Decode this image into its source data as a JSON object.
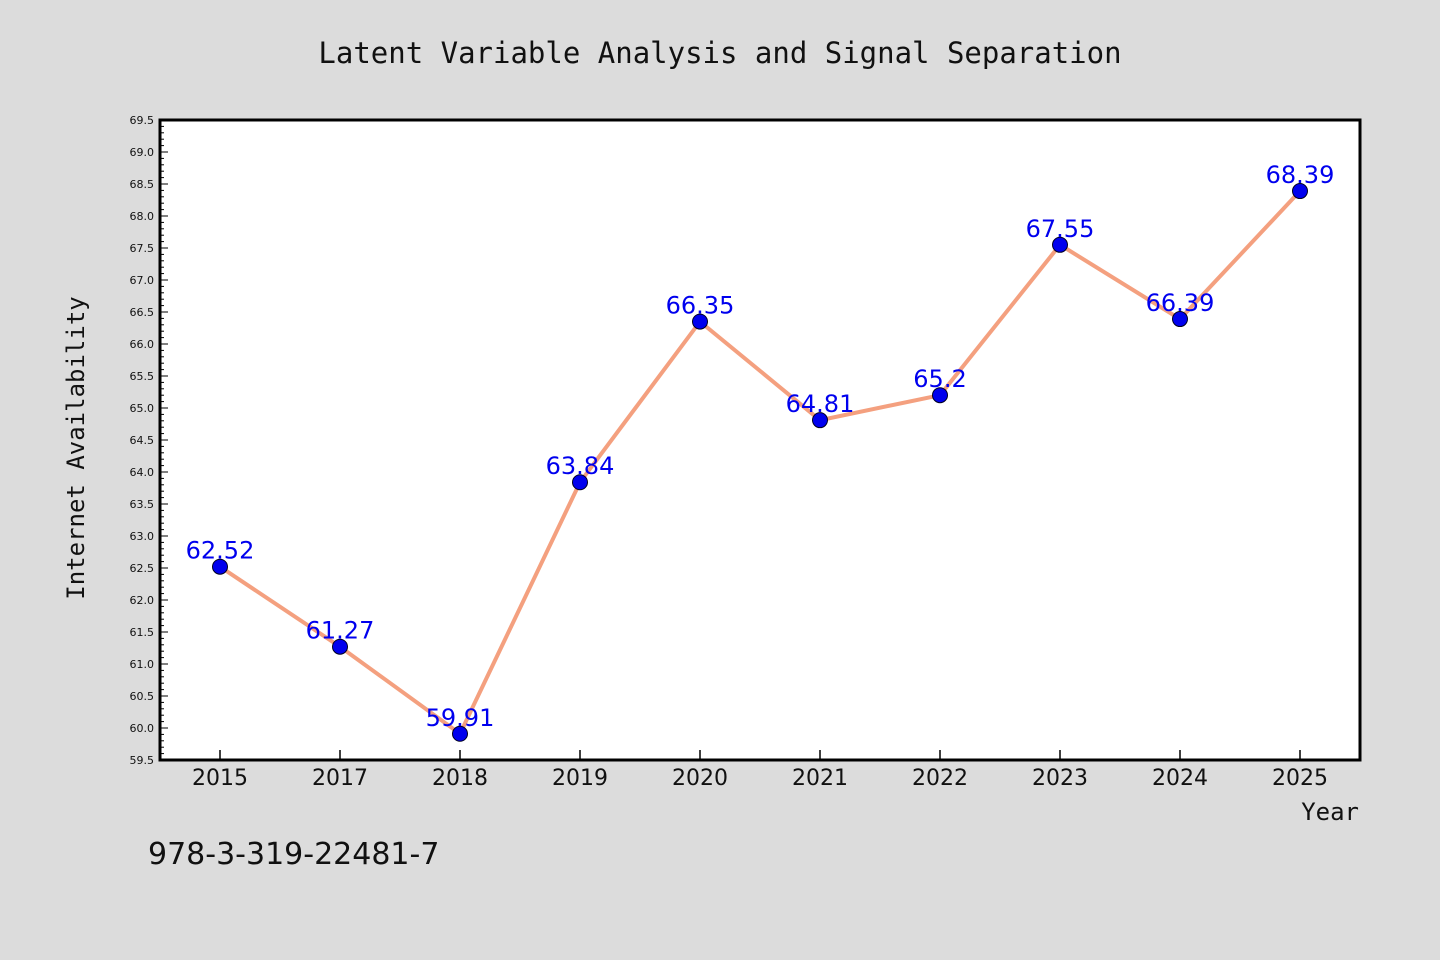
{
  "chart_data": {
    "type": "line",
    "title": "Latent Variable Analysis and Signal Separation",
    "xlabel": "Year",
    "ylabel": "Internet Availability",
    "categories": [
      "2015",
      "2017",
      "2018",
      "2019",
      "2020",
      "2021",
      "2022",
      "2023",
      "2024",
      "2025"
    ],
    "series": [
      {
        "values": [
          62.52,
          61.27,
          59.91,
          63.84,
          66.35,
          64.81,
          65.2,
          67.55,
          66.39,
          68.39
        ]
      }
    ],
    "data_labels": [
      "62.52",
      "61.27",
      "59.91",
      "63.84",
      "66.35",
      "64.81",
      "65.2",
      "67.55",
      "66.39",
      "68.39"
    ],
    "ylim": [
      59.5,
      69.5
    ],
    "ytick_labels": [
      "59.5",
      "60.0",
      "60.5",
      "61.0",
      "61.5",
      "62.0",
      "62.5",
      "63.0",
      "63.5",
      "64.0",
      "64.5",
      "65.0",
      "65.5",
      "66.0",
      "66.5",
      "67.0",
      "67.5",
      "68.0",
      "68.5",
      "69.0",
      "69.5"
    ],
    "grid": false,
    "legend": "none",
    "colors": {
      "line": "#f4a07f",
      "marker": "#0000ee",
      "label": "#0000ee",
      "background": "#dcdcdc",
      "plot_bg": "#ffffff"
    }
  },
  "annotation": "978-3-319-22481-7"
}
